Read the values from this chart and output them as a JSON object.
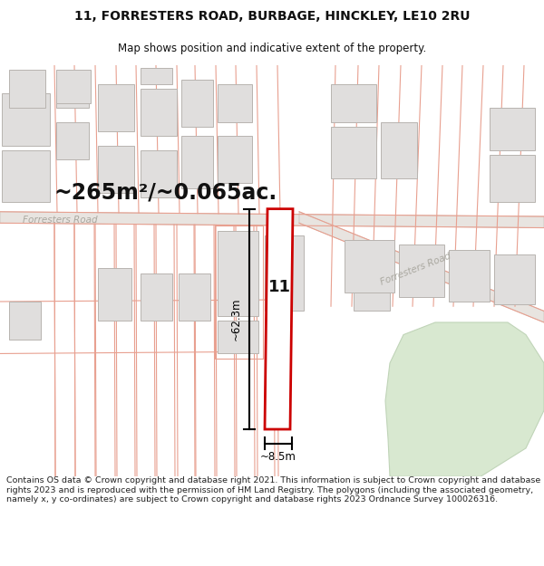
{
  "title_line1": "11, FORRESTERS ROAD, BURBAGE, HINCKLEY, LE10 2RU",
  "title_line2": "Map shows position and indicative extent of the property.",
  "area_text": "~265m²/~0.065ac.",
  "property_number": "11",
  "dim_width": "~8.5m",
  "dim_height": "~62.3m",
  "road_label1": "Forresters Road",
  "road_label2": "Forresters Road",
  "footer_text": "Contains OS data © Crown copyright and database right 2021. This information is subject to Crown copyright and database rights 2023 and is reproduced with the permission of HM Land Registry. The polygons (including the associated geometry, namely x, y co-ordinates) are subject to Crown copyright and database rights 2023 Ordnance Survey 100026316.",
  "map_bg": "#f8f7f5",
  "plot_line_color": "#e8a090",
  "plot_line_lw": 0.8,
  "building_fill": "#e0dedd",
  "building_edge": "#b8b4b0",
  "building_lw": 0.7,
  "road_fill": "#e8e4e0",
  "road_edge": "#c8c0b8",
  "property_fill": "#ffffff",
  "property_stroke": "#cc0000",
  "property_lw": 2.0,
  "dim_color": "#000000",
  "text_color": "#111111",
  "road_label_color": "#aaa8a0",
  "footer_color": "#222222",
  "green_fill": "#d8e8d0",
  "green_edge": "#c0d4b8"
}
